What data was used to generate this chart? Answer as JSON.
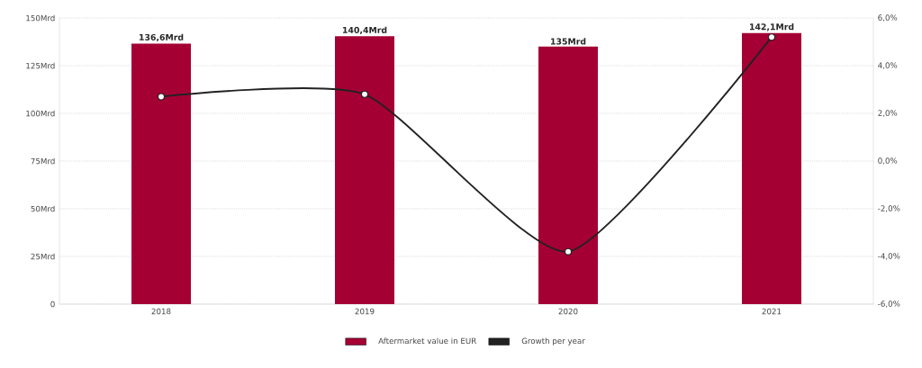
{
  "chart_data": {
    "type": "bar",
    "categories": [
      "2018",
      "2019",
      "2020",
      "2021"
    ],
    "series": [
      {
        "name": "Aftermarket value in EUR",
        "color": "#a50034",
        "values": [
          136.6,
          140.4,
          135,
          142.1
        ],
        "value_labels": [
          "136,6Mrd",
          "140,4Mrd",
          "135Mrd",
          "142,1Mrd"
        ]
      },
      {
        "name": "Growth per year",
        "type": "line",
        "axis": "y2",
        "color": "#222222",
        "values": [
          2.7,
          2.8,
          -3.8,
          5.2
        ]
      }
    ],
    "ylim": [
      0,
      150
    ],
    "yticks": [
      0,
      {
        "value": 25,
        "label": "25Mrd"
      },
      {
        "value": 50,
        "label": "50Mrd"
      },
      {
        "value": 75,
        "label": "75Mrd"
      },
      {
        "value": 100,
        "label": "100Mrd"
      },
      {
        "value": 125,
        "label": "125Mrd"
      },
      {
        "value": 150,
        "label": "150Mrd"
      }
    ],
    "y2lim": [
      -6,
      6
    ],
    "y2ticks": [
      {
        "value": -6,
        "label": "-6,0%"
      },
      {
        "value": -4,
        "label": "-4,0%"
      },
      {
        "value": -2,
        "label": "-2,0%"
      },
      {
        "value": 0,
        "label": "0,0%"
      },
      {
        "value": 2,
        "label": "2,0%"
      },
      {
        "value": 4,
        "label": "4,0%"
      },
      {
        "value": 6,
        "label": "6,0%"
      }
    ],
    "grid": "y",
    "legend": "bottom",
    "marker": "circle",
    "line_style": "solid"
  }
}
